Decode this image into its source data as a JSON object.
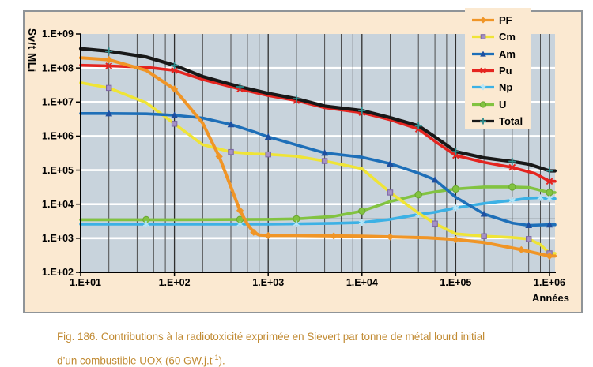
{
  "figure": {
    "y_axis_title": "Sv/t MLi",
    "x_axis_unit": "Années",
    "caption": {
      "line1": "Fig. 186. Contributions à la radiotoxicité exprimée en Sievert par tonne de métal lourd initial",
      "line2_prefix": "d’un combustible UOX (60 GW.j.t",
      "line2_sup": "-1",
      "line2_suffix": ")."
    },
    "colors": {
      "card_background": "#FBE9D1",
      "plot_background": "#C8D3DC",
      "horizontal_gridline": "#ffffff",
      "vertical_gridline_major": "#2f2f2f",
      "vertical_gridline_minor": "#4d4d4d",
      "axis": "#000000",
      "caption_text": "#C18A32"
    }
  },
  "chart_data": {
    "type": "line",
    "x_scale": "log",
    "y_scale": "log",
    "xlim": [
      10,
      1000000
    ],
    "ylim": [
      100,
      1000000000
    ],
    "xlabel": "Années",
    "ylabel": "Sv/t MLi",
    "grid": {
      "horizontal_major": true,
      "vertical_major": true,
      "vertical_minor_at": [
        2,
        4,
        6,
        8
      ]
    },
    "x_tick_labels": [
      "1.E+01",
      "1.E+02",
      "1.E+03",
      "1.E+04",
      "1.E+05",
      "1.E+06"
    ],
    "y_tick_labels": [
      "1.E+02",
      "1.E+03",
      "1.E+04",
      "1.E+05",
      "1.E+06",
      "1.E+07",
      "1.E+08",
      "1.E+09"
    ],
    "legend_position": "top-right",
    "reference_line": {
      "value": 3700,
      "color": "#1a1a1a"
    },
    "series": [
      {
        "name": "PF",
        "color": "#F09526",
        "marker": "diamond",
        "marker_color": "#F09526",
        "points": [
          [
            10,
            200000000.0
          ],
          [
            20,
            175000000.0
          ],
          [
            50,
            85000000.0
          ],
          [
            100,
            24000000.0
          ],
          [
            200,
            2400000.0
          ],
          [
            300,
            250000.0
          ],
          [
            400,
            32000.0
          ],
          [
            500,
            6500.0
          ],
          [
            600,
            2600.0
          ],
          [
            700,
            1500.0
          ],
          [
            800,
            1250.0
          ],
          [
            1000,
            1200.0
          ],
          [
            2000,
            1200.0
          ],
          [
            5000,
            1170.0
          ],
          [
            10000,
            1150.0
          ],
          [
            20000,
            1100.0
          ],
          [
            50000,
            1030.0
          ],
          [
            100000,
            920.0
          ],
          [
            200000,
            750.0
          ],
          [
            500000,
            460.0
          ],
          [
            1000000,
            300.0
          ]
        ]
      },
      {
        "name": "Cm",
        "color": "#EFE436",
        "marker": "square",
        "marker_color": "#A591C4",
        "marker_stroke": "#7B66A4",
        "points": [
          [
            10,
            37000000.0
          ],
          [
            20,
            26000000.0
          ],
          [
            50,
            9500000.0
          ],
          [
            100,
            2300000.0
          ],
          [
            200,
            560000.0
          ],
          [
            400,
            340000.0
          ],
          [
            700,
            300000.0
          ],
          [
            1000,
            290000.0
          ],
          [
            2000,
            255000.0
          ],
          [
            4000,
            185000.0
          ],
          [
            10000,
            110000.0
          ],
          [
            20000,
            22000.0
          ],
          [
            40000,
            5500.0
          ],
          [
            60000,
            2700.0
          ],
          [
            100000,
            1350.0
          ],
          [
            200000,
            1150.0
          ],
          [
            400000,
            1050.0
          ],
          [
            600000,
            950.0
          ],
          [
            800000,
            650.0
          ],
          [
            1000000,
            360.0
          ]
        ]
      },
      {
        "name": "Am",
        "color": "#1E6FB8",
        "marker": "triangle",
        "marker_color": "#1E4FA0",
        "points": [
          [
            10,
            4600000.0
          ],
          [
            20,
            4600000.0
          ],
          [
            50,
            4500000.0
          ],
          [
            100,
            4100000.0
          ],
          [
            200,
            3400000.0
          ],
          [
            400,
            2200000.0
          ],
          [
            700,
            1350000.0
          ],
          [
            1000,
            950000.0
          ],
          [
            2000,
            550000.0
          ],
          [
            4000,
            320000.0
          ],
          [
            10000,
            240000.0
          ],
          [
            20000,
            155000.0
          ],
          [
            40000,
            82000.0
          ],
          [
            60000,
            52000.0
          ],
          [
            100000,
            16000.0
          ],
          [
            200000,
            5200.0
          ],
          [
            400000,
            2800.0
          ],
          [
            600000,
            2400.0
          ],
          [
            1000000,
            2500.0
          ]
        ]
      },
      {
        "name": "Pu",
        "color": "#E52520",
        "marker": "x",
        "marker_color": "#E52520",
        "points": [
          [
            10,
            120000000.0
          ],
          [
            20,
            115000000.0
          ],
          [
            50,
            105000000.0
          ],
          [
            100,
            85000000.0
          ],
          [
            200,
            46000000.0
          ],
          [
            500,
            24000000.0
          ],
          [
            1000,
            15500000.0
          ],
          [
            2000,
            11000000.0
          ],
          [
            4000,
            6800000.0
          ],
          [
            10000,
            4900000.0
          ],
          [
            20000,
            3000000.0
          ],
          [
            40000,
            1600000.0
          ],
          [
            60000,
            700000.0
          ],
          [
            100000,
            270000.0
          ],
          [
            200000,
            170000.0
          ],
          [
            400000,
            120000.0
          ],
          [
            700000,
            80000.0
          ],
          [
            1000000,
            47000.0
          ]
        ]
      },
      {
        "name": "Np",
        "color": "#3CB1E5",
        "marker": "asterisk",
        "marker_color": "#B5E6F8",
        "points": [
          [
            10,
            2600.0
          ],
          [
            50,
            2600.0
          ],
          [
            100,
            2600.0
          ],
          [
            500,
            2600.0
          ],
          [
            1000,
            2600.0
          ],
          [
            2000,
            2650.0
          ],
          [
            5000,
            2750.0
          ],
          [
            10000,
            2900.0
          ],
          [
            20000,
            3600.0
          ],
          [
            40000,
            5000.0
          ],
          [
            60000,
            5800.0
          ],
          [
            100000,
            7800.0
          ],
          [
            200000,
            10500.0
          ],
          [
            400000,
            13000.0
          ],
          [
            600000,
            15000.0
          ],
          [
            800000,
            15500.0
          ],
          [
            1000000,
            14500.0
          ]
        ]
      },
      {
        "name": "U",
        "color": "#82C341",
        "marker": "circle",
        "marker_color": "#82C341",
        "marker_stroke": "#69A530",
        "points": [
          [
            10,
            3500.0
          ],
          [
            50,
            3500.0
          ],
          [
            100,
            3500.0
          ],
          [
            500,
            3550.0
          ],
          [
            1000,
            3600.0
          ],
          [
            2000,
            3700.0
          ],
          [
            5000,
            4400.0
          ],
          [
            10000,
            6300.0
          ],
          [
            20000,
            12000.0
          ],
          [
            40000,
            19000.0
          ],
          [
            60000,
            23000.0
          ],
          [
            100000,
            28000.0
          ],
          [
            200000,
            32000.0
          ],
          [
            400000,
            32000.0
          ],
          [
            600000,
            31000.0
          ],
          [
            1000000,
            22000.0
          ]
        ]
      },
      {
        "name": "Total",
        "color": "#181818",
        "marker": "plus",
        "marker_color": "#2D8C8C",
        "points": [
          [
            10,
            370000000.0
          ],
          [
            20,
            310000000.0
          ],
          [
            50,
            210000000.0
          ],
          [
            100,
            120000000.0
          ],
          [
            200,
            56000000.0
          ],
          [
            500,
            28000000.0
          ],
          [
            1000,
            18000000.0
          ],
          [
            2000,
            12500000.0
          ],
          [
            4000,
            7600000.0
          ],
          [
            10000,
            5600000.0
          ],
          [
            20000,
            3500000.0
          ],
          [
            40000,
            2000000.0
          ],
          [
            60000,
            950000.0
          ],
          [
            100000,
            350000.0
          ],
          [
            200000,
            230000.0
          ],
          [
            400000,
            180000.0
          ],
          [
            600000,
            150000.0
          ],
          [
            1000000,
            95000.0
          ]
        ]
      }
    ]
  }
}
